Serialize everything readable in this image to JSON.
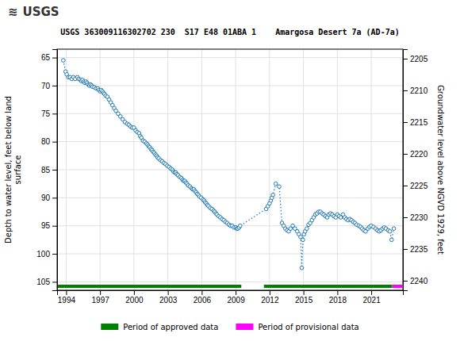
{
  "chart_data": {
    "type": "line",
    "title": "USGS 363009116302702 230  S17 E48 01ABA 1    Amargosa Desert 7a (AD-7a)",
    "annotations": [
      "≋",
      "USGS"
    ],
    "y_label": "Depth to water level, feet below land\nsurface",
    "y2_label": "Groundwater level above NGVD 1929, feet",
    "x": [
      1993.75,
      1993.95,
      1994.05,
      1994.2,
      1994.35,
      1994.5,
      1994.65,
      1994.8,
      1995.0,
      1995.12,
      1995.25,
      1995.35,
      1995.45,
      1995.55,
      1995.65,
      1995.75,
      1995.85,
      1995.95,
      1996.05,
      1996.15,
      1996.25,
      1996.35,
      1996.5,
      1996.65,
      1996.8,
      1996.9,
      1997.0,
      1997.1,
      1997.2,
      1997.3,
      1997.4,
      1997.5,
      1997.65,
      1997.8,
      1997.95,
      1998.1,
      1998.25,
      1998.4,
      1998.6,
      1998.8,
      1999.0,
      1999.2,
      1999.4,
      1999.55,
      1999.7,
      1999.85,
      2000.0,
      2000.15,
      2000.3,
      2000.45,
      2000.55,
      2000.65,
      2000.8,
      2000.95,
      2001.1,
      2001.2,
      2001.3,
      2001.4,
      2001.5,
      2001.6,
      2001.7,
      2001.8,
      2001.9,
      2002.0,
      2002.1,
      2002.2,
      2002.35,
      2002.5,
      2002.65,
      2002.8,
      2002.95,
      2003.1,
      2003.25,
      2003.4,
      2003.5,
      2003.6,
      2003.7,
      2003.8,
      2003.9,
      2004.05,
      2004.2,
      2004.3,
      2004.4,
      2004.5,
      2004.6,
      2004.7,
      2004.8,
      2004.95,
      2005.1,
      2005.2,
      2005.3,
      2005.4,
      2005.5,
      2005.6,
      2005.7,
      2005.8,
      2005.95,
      2006.1,
      2006.2,
      2006.3,
      2006.4,
      2006.5,
      2006.6,
      2006.75,
      2006.9,
      2007.05,
      2007.15,
      2007.25,
      2007.35,
      2007.5,
      2007.65,
      2007.8,
      2007.95,
      2008.1,
      2008.25,
      2008.4,
      2008.55,
      2008.7,
      2008.85,
      2009.0,
      2009.1,
      2009.2,
      2009.3,
      2009.4,
      2011.7,
      2011.85,
      2012.0,
      2012.1,
      2012.2,
      2012.3,
      2012.55,
      2012.85,
      2013.1,
      2013.25,
      2013.4,
      2013.55,
      2013.7,
      2013.85,
      2014.05,
      2014.25,
      2014.45,
      2014.6,
      2014.75,
      2014.85,
      2014.95,
      2015.05,
      2015.15,
      2015.3,
      2015.45,
      2015.6,
      2015.75,
      2015.9,
      2016.05,
      2016.2,
      2016.35,
      2016.5,
      2016.65,
      2016.8,
      2016.95,
      2017.1,
      2017.25,
      2017.4,
      2017.55,
      2017.7,
      2017.85,
      2018.0,
      2018.15,
      2018.3,
      2018.5,
      2018.65,
      2018.8,
      2018.95,
      2019.1,
      2019.25,
      2019.4,
      2019.55,
      2019.7,
      2019.9,
      2020.05,
      2020.2,
      2020.35,
      2020.5,
      2020.7,
      2020.85,
      2021.0,
      2021.2,
      2021.4,
      2021.55,
      2021.7,
      2021.85,
      2022.0,
      2022.15,
      2022.3,
      2022.5,
      2022.65,
      2022.8,
      2023.0
    ],
    "series": [
      {
        "marker": "circle",
        "line_style": "dotted",
        "values": [
          65.5,
          67.5,
          68.0,
          68.5,
          68.5,
          68.8,
          68.5,
          68.8,
          68.5,
          68.8,
          69.0,
          69.2,
          69.0,
          69.3,
          69.5,
          69.3,
          69.5,
          69.8,
          70.0,
          69.8,
          70.0,
          70.2,
          70.3,
          70.5,
          70.5,
          70.8,
          71.0,
          70.8,
          71.0,
          71.3,
          71.5,
          71.8,
          72.0,
          72.5,
          73.0,
          73.5,
          74.0,
          74.5,
          75.0,
          75.5,
          76.0,
          76.5,
          76.8,
          77.0,
          77.3,
          77.5,
          77.5,
          78.0,
          78.3,
          78.5,
          79.0,
          79.3,
          79.8,
          80.0,
          80.3,
          80.5,
          80.8,
          81.0,
          81.3,
          81.5,
          81.8,
          82.0,
          82.3,
          82.5,
          82.8,
          83.0,
          83.3,
          83.5,
          83.8,
          84.0,
          84.3,
          84.5,
          84.8,
          85.0,
          85.3,
          85.5,
          85.5,
          85.8,
          86.0,
          86.3,
          86.5,
          86.8,
          87.0,
          87.0,
          87.3,
          87.5,
          87.8,
          88.0,
          88.3,
          88.5,
          88.5,
          88.8,
          89.0,
          89.3,
          89.5,
          89.8,
          90.0,
          90.3,
          90.5,
          90.8,
          91.0,
          91.3,
          91.5,
          91.8,
          92.0,
          92.3,
          92.5,
          92.8,
          93.0,
          93.3,
          93.5,
          93.8,
          94.0,
          94.3,
          94.5,
          94.8,
          95.0,
          95.0,
          95.3,
          95.3,
          95.5,
          95.5,
          95.3,
          95.0,
          92.0,
          91.5,
          91.0,
          90.5,
          90.0,
          89.5,
          87.5,
          88.0,
          94.5,
          95.0,
          95.5,
          95.8,
          96.0,
          95.5,
          95.0,
          95.5,
          96.0,
          96.5,
          97.0,
          102.5,
          97.5,
          96.5,
          96.0,
          95.5,
          94.8,
          94.5,
          94.0,
          93.5,
          93.0,
          92.8,
          92.5,
          92.5,
          92.8,
          93.0,
          93.3,
          93.5,
          93.0,
          92.8,
          93.0,
          93.3,
          93.5,
          93.0,
          93.3,
          93.5,
          93.0,
          93.5,
          93.8,
          94.0,
          93.8,
          94.0,
          94.3,
          94.5,
          94.8,
          95.0,
          95.2,
          95.5,
          95.8,
          96.0,
          95.5,
          95.2,
          95.0,
          95.2,
          95.5,
          95.8,
          96.0,
          95.8,
          95.5,
          95.3,
          95.5,
          95.8,
          96.0,
          97.5,
          95.5
        ]
      }
    ],
    "xlim": [
      1993.2,
      2023.8
    ],
    "xticks": [
      1994,
      1997,
      2000,
      2003,
      2006,
      2009,
      2012,
      2015,
      2018,
      2021
    ],
    "ylim": [
      106.5,
      63.5
    ],
    "yticks": [
      65,
      70,
      75,
      80,
      85,
      90,
      95,
      100,
      105
    ],
    "y2lim": [
      2241.5,
      2203.5
    ],
    "y2ticks": [
      2205,
      2210,
      2215,
      2220,
      2225,
      2230,
      2235,
      2240
    ],
    "grid": true,
    "periods": [
      {
        "name": "Period of approved data",
        "color": "#008000",
        "ranges": [
          [
            1993.2,
            2009.5
          ],
          [
            2011.5,
            2022.85
          ]
        ]
      },
      {
        "name": "Period of provisional data",
        "color": "#FF00FF",
        "ranges": [
          [
            2022.85,
            2023.8
          ]
        ]
      }
    ]
  }
}
